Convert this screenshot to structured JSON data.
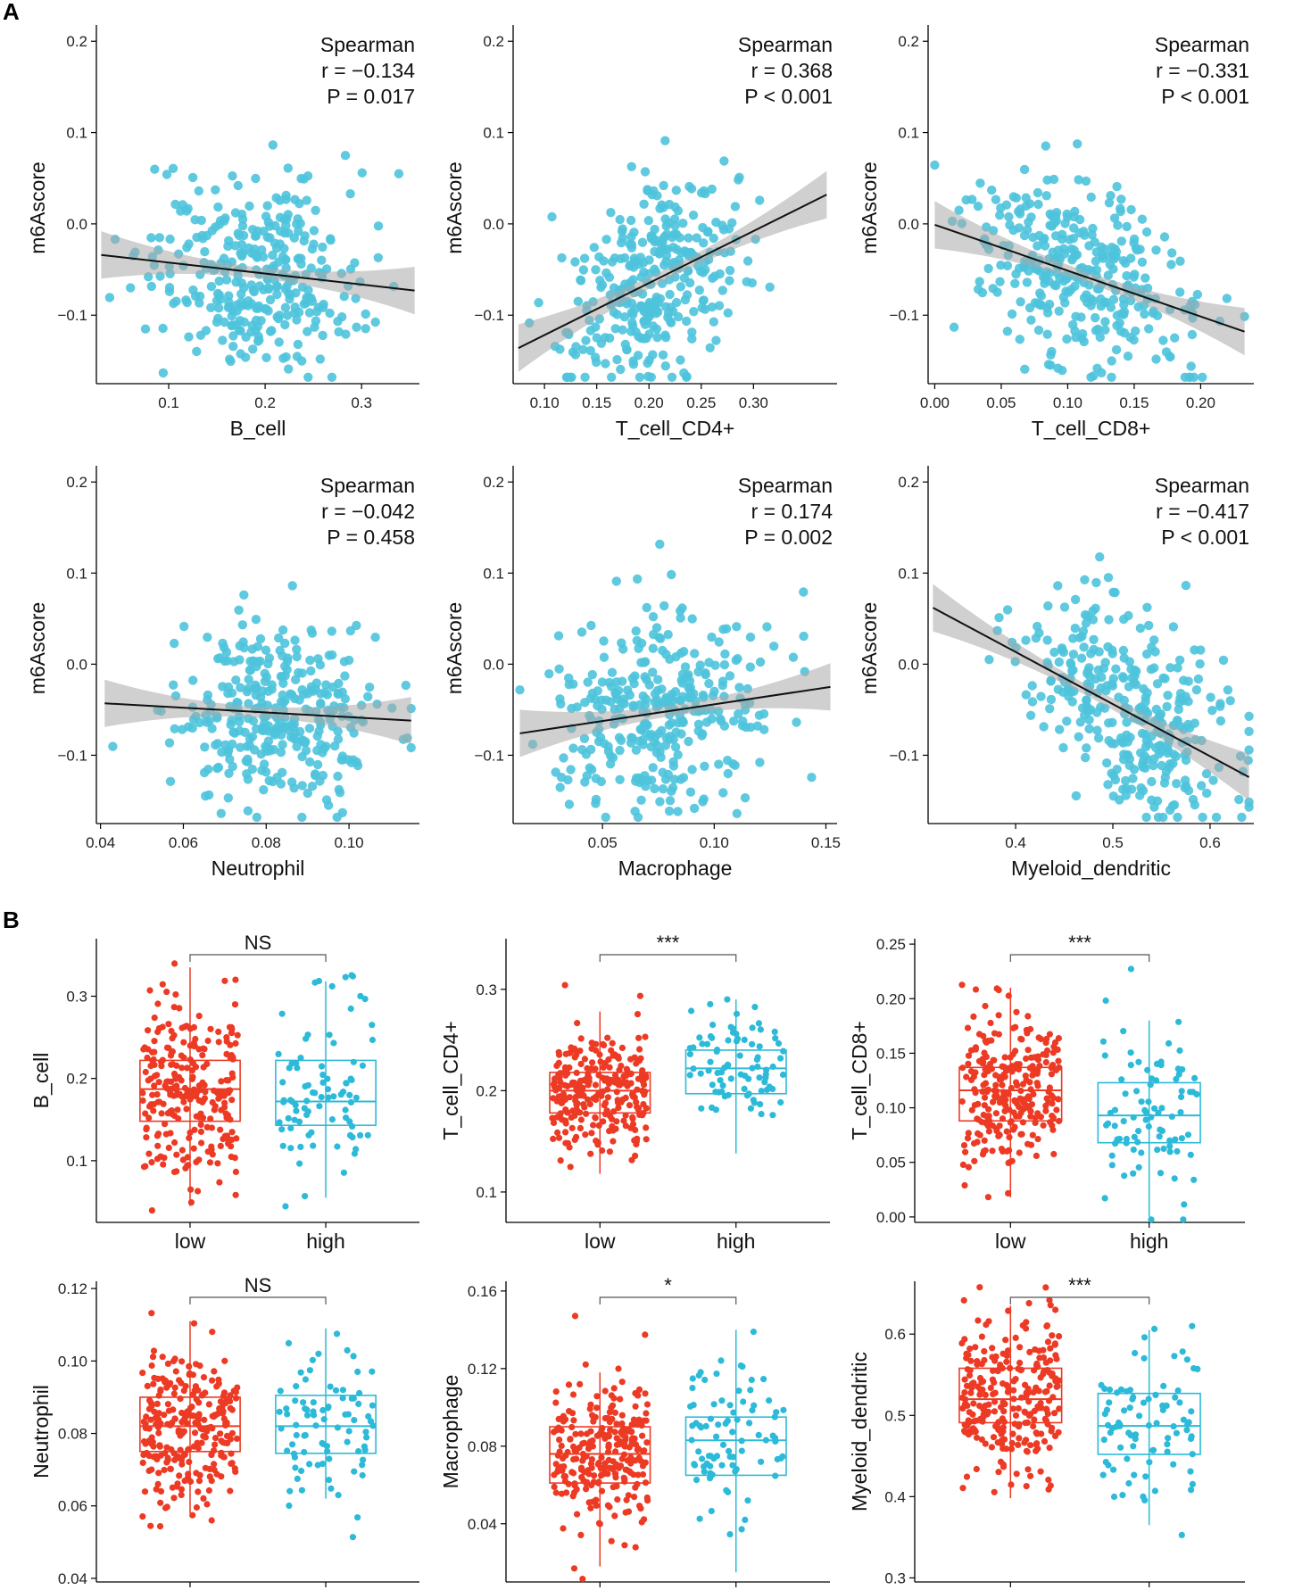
{
  "panel_labels": [
    "A",
    "B"
  ],
  "colors": {
    "scatter": "#4ec3dc",
    "low": "#ec3a24",
    "high": "#2dbad8",
    "line": "#111111",
    "band": "#aaaaaa"
  },
  "chart_data": [
    {
      "id": "a1",
      "type": "scatter",
      "xlabel": "B_cell",
      "ylabel": "m6Ascore",
      "xlim": [
        0.025,
        0.36
      ],
      "ylim": [
        -0.175,
        0.21
      ],
      "xticks": [
        0.1,
        0.2,
        0.3
      ],
      "xtick_labels": [
        "0.1",
        "0.2",
        "0.3"
      ],
      "yticks": [
        -0.1,
        0.0,
        0.1,
        0.2
      ],
      "ytick_labels": [
        "−0.1",
        "0.0",
        "0.1",
        "0.2"
      ],
      "stats": {
        "method": "Spearman",
        "r": "r = −0.134",
        "p": "P = 0.017"
      },
      "fit": {
        "x": [
          0.03,
          0.355
        ],
        "y": [
          -0.034,
          -0.073
        ]
      },
      "n_points": 330,
      "x_center": 0.19,
      "x_spread": 0.055
    },
    {
      "id": "a2",
      "type": "scatter",
      "xlabel": "T_cell_CD4+",
      "ylabel": "m6Ascore",
      "xlim": [
        0.07,
        0.38
      ],
      "ylim": [
        -0.175,
        0.21
      ],
      "xticks": [
        0.1,
        0.15,
        0.2,
        0.25,
        0.3
      ],
      "xtick_labels": [
        "0.10",
        "0.15",
        "0.20",
        "0.25",
        "0.30"
      ],
      "yticks": [
        -0.1,
        0.0,
        0.1,
        0.2
      ],
      "ytick_labels": [
        "−0.1",
        "0.0",
        "0.1",
        "0.2"
      ],
      "stats": {
        "method": "Spearman",
        "r": "r = 0.368",
        "p": "P < 0.001"
      },
      "fit": {
        "x": [
          0.075,
          0.37
        ],
        "y": [
          -0.136,
          0.032
        ]
      },
      "n_points": 330,
      "x_center": 0.205,
      "x_spread": 0.04
    },
    {
      "id": "a3",
      "type": "scatter",
      "xlabel": "T_cell_CD8+",
      "ylabel": "m6Ascore",
      "xlim": [
        -0.005,
        0.24
      ],
      "ylim": [
        -0.175,
        0.21
      ],
      "xticks": [
        0.0,
        0.05,
        0.1,
        0.15,
        0.2
      ],
      "xtick_labels": [
        "0.00",
        "0.05",
        "0.10",
        "0.15",
        "0.20"
      ],
      "yticks": [
        -0.1,
        0.0,
        0.1,
        0.2
      ],
      "ytick_labels": [
        "−0.1",
        "0.0",
        "0.1",
        "0.2"
      ],
      "stats": {
        "method": "Spearman",
        "r": "r = −0.331",
        "p": "P < 0.001"
      },
      "fit": {
        "x": [
          0.0,
          0.233
        ],
        "y": [
          -0.001,
          -0.118
        ]
      },
      "n_points": 330,
      "x_center": 0.11,
      "x_spread": 0.045
    },
    {
      "id": "a4",
      "type": "scatter",
      "xlabel": "Neutrophil",
      "ylabel": "m6Ascore",
      "xlim": [
        0.039,
        0.117
      ],
      "ylim": [
        -0.175,
        0.21
      ],
      "xticks": [
        0.04,
        0.06,
        0.08,
        0.1
      ],
      "xtick_labels": [
        "0.04",
        "0.06",
        "0.08",
        "0.10"
      ],
      "yticks": [
        -0.1,
        0.0,
        0.1,
        0.2
      ],
      "ytick_labels": [
        "−0.1",
        "0.0",
        "0.1",
        "0.2"
      ],
      "stats": {
        "method": "Spearman",
        "r": "r = −0.042",
        "p": "P = 0.458"
      },
      "fit": {
        "x": [
          0.041,
          0.115
        ],
        "y": [
          -0.043,
          -0.062
        ]
      },
      "n_points": 330,
      "x_center": 0.083,
      "x_spread": 0.012
    },
    {
      "id": "a5",
      "type": "scatter",
      "xlabel": "Macrophage",
      "ylabel": "m6Ascore",
      "xlim": [
        0.01,
        0.155
      ],
      "ylim": [
        -0.175,
        0.21
      ],
      "xticks": [
        0.05,
        0.1,
        0.15
      ],
      "xtick_labels": [
        "0.05",
        "0.10",
        "0.15"
      ],
      "yticks": [
        -0.1,
        0.0,
        0.1,
        0.2
      ],
      "ytick_labels": [
        "−0.1",
        "0.0",
        "0.1",
        "0.2"
      ],
      "stats": {
        "method": "Spearman",
        "r": "r = 0.174",
        "p": "P = 0.002"
      },
      "fit": {
        "x": [
          0.013,
          0.152
        ],
        "y": [
          -0.076,
          -0.025
        ]
      },
      "n_points": 330,
      "x_center": 0.075,
      "x_spread": 0.024
    },
    {
      "id": "a6",
      "type": "scatter",
      "xlabel": "Myeloid_dendritic",
      "ylabel": "m6Ascore",
      "xlim": [
        0.31,
        0.645
      ],
      "ylim": [
        -0.175,
        0.21
      ],
      "xticks": [
        0.4,
        0.5,
        0.6
      ],
      "xtick_labels": [
        "0.4",
        "0.5",
        "0.6"
      ],
      "yticks": [
        -0.1,
        0.0,
        0.1,
        0.2
      ],
      "ytick_labels": [
        "−0.1",
        "0.0",
        "0.1",
        "0.2"
      ],
      "stats": {
        "method": "Spearman",
        "r": "r = −0.417",
        "p": "P < 0.001"
      },
      "fit": {
        "x": [
          0.315,
          0.64
        ],
        "y": [
          0.062,
          -0.124
        ]
      },
      "n_points": 330,
      "x_center": 0.51,
      "x_spread": 0.055
    },
    {
      "id": "b1",
      "type": "box",
      "ylabel": "B_cell",
      "categories": [
        "low",
        "high"
      ],
      "significance": "NS",
      "ylim": [
        0.025,
        0.37
      ],
      "yticks": [
        0.1,
        0.2,
        0.3
      ],
      "ytick_labels": [
        "0.1",
        "0.2",
        "0.3"
      ],
      "boxes": [
        {
          "group": "low",
          "q1": 0.148,
          "median": 0.187,
          "q3": 0.222,
          "whisker_low": 0.045,
          "whisker_high": 0.335,
          "n": 260
        },
        {
          "group": "high",
          "q1": 0.143,
          "median": 0.172,
          "q3": 0.222,
          "whisker_low": 0.055,
          "whisker_high": 0.318,
          "n": 85
        }
      ]
    },
    {
      "id": "b2",
      "type": "box",
      "ylabel": "T_cell_CD4+",
      "categories": [
        "low",
        "high"
      ],
      "significance": "***",
      "ylim": [
        0.07,
        0.35
      ],
      "yticks": [
        0.1,
        0.2,
        0.3
      ],
      "ytick_labels": [
        "0.1",
        "0.2",
        "0.3"
      ],
      "boxes": [
        {
          "group": "low",
          "q1": 0.178,
          "median": 0.2,
          "q3": 0.218,
          "whisker_low": 0.118,
          "whisker_high": 0.278,
          "n": 260
        },
        {
          "group": "high",
          "q1": 0.197,
          "median": 0.222,
          "q3": 0.24,
          "whisker_low": 0.138,
          "whisker_high": 0.29,
          "n": 85
        }
      ]
    },
    {
      "id": "b3",
      "type": "box",
      "ylabel": "T_cell_CD8+",
      "categories": [
        "low",
        "high"
      ],
      "significance": "***",
      "ylim": [
        -0.005,
        0.255
      ],
      "yticks": [
        0.0,
        0.05,
        0.1,
        0.15,
        0.2,
        0.25
      ],
      "ytick_labels": [
        "0.00",
        "0.05",
        "0.10",
        "0.15",
        "0.20",
        "0.25"
      ],
      "boxes": [
        {
          "group": "low",
          "q1": 0.088,
          "median": 0.116,
          "q3": 0.137,
          "whisker_low": 0.018,
          "whisker_high": 0.21,
          "n": 260
        },
        {
          "group": "high",
          "q1": 0.068,
          "median": 0.093,
          "q3": 0.123,
          "whisker_low": 0.0,
          "whisker_high": 0.18,
          "n": 85
        }
      ]
    },
    {
      "id": "b4",
      "type": "box",
      "ylabel": "Neutrophil",
      "categories": [
        "low",
        "high"
      ],
      "significance": "NS",
      "ylim": [
        0.039,
        0.122
      ],
      "yticks": [
        0.04,
        0.06,
        0.08,
        0.1,
        0.12
      ],
      "ytick_labels": [
        "0.04",
        "0.06",
        "0.08",
        "0.10",
        "0.12"
      ],
      "boxes": [
        {
          "group": "low",
          "q1": 0.075,
          "median": 0.082,
          "q3": 0.09,
          "whisker_low": 0.058,
          "whisker_high": 0.111,
          "n": 260
        },
        {
          "group": "high",
          "q1": 0.0745,
          "median": 0.082,
          "q3": 0.0905,
          "whisker_low": 0.062,
          "whisker_high": 0.109,
          "n": 85
        }
      ]
    },
    {
      "id": "b5",
      "type": "box",
      "ylabel": "Macrophage",
      "categories": [
        "low",
        "high"
      ],
      "significance": "*",
      "ylim": [
        0.01,
        0.165
      ],
      "yticks": [
        0.04,
        0.08,
        0.12,
        0.16
      ],
      "ytick_labels": [
        "0.04",
        "0.08",
        "0.12",
        "0.16"
      ],
      "boxes": [
        {
          "group": "low",
          "q1": 0.061,
          "median": 0.076,
          "q3": 0.09,
          "whisker_low": 0.018,
          "whisker_high": 0.118,
          "n": 260
        },
        {
          "group": "high",
          "q1": 0.065,
          "median": 0.083,
          "q3": 0.095,
          "whisker_low": 0.015,
          "whisker_high": 0.14,
          "n": 85
        }
      ]
    },
    {
      "id": "b6",
      "type": "box",
      "ylabel": "Myeloid_dendritic",
      "categories": [
        "low",
        "high"
      ],
      "significance": "***",
      "ylim": [
        0.295,
        0.665
      ],
      "yticks": [
        0.3,
        0.4,
        0.5,
        0.6
      ],
      "ytick_labels": [
        "0.3",
        "0.4",
        "0.5",
        "0.6"
      ],
      "boxes": [
        {
          "group": "low",
          "q1": 0.491,
          "median": 0.52,
          "q3": 0.558,
          "whisker_low": 0.398,
          "whisker_high": 0.635,
          "n": 260
        },
        {
          "group": "high",
          "q1": 0.452,
          "median": 0.487,
          "q3": 0.527,
          "whisker_low": 0.365,
          "whisker_high": 0.605,
          "n": 85
        }
      ]
    }
  ]
}
